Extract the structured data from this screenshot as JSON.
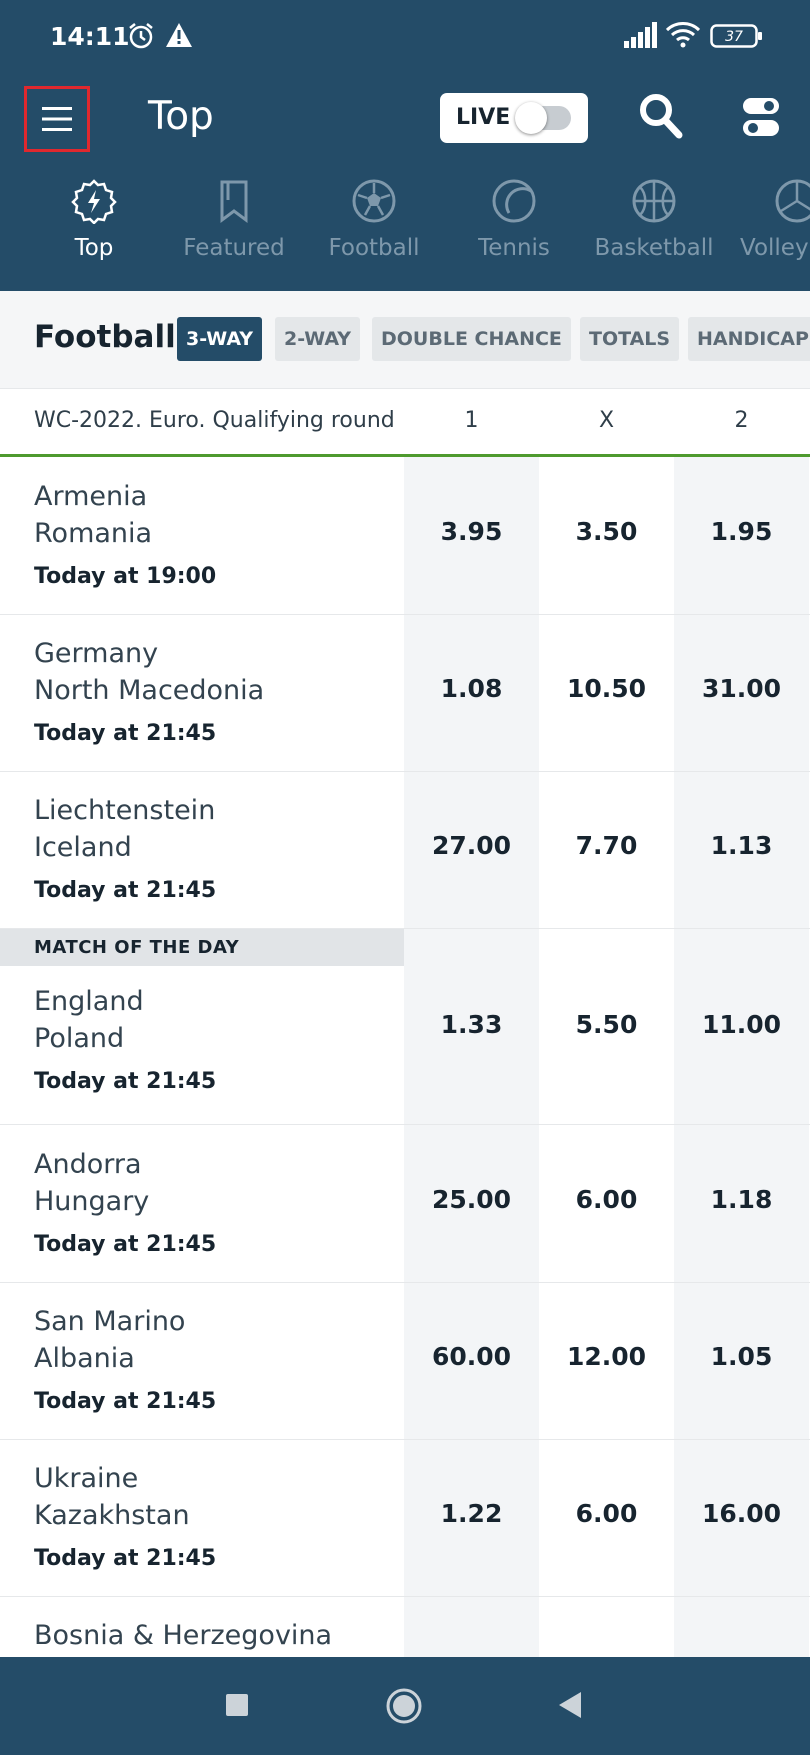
{
  "status_bar": {
    "time": "14:11",
    "battery": "37",
    "icons": [
      "alarm-icon",
      "warning-icon",
      "signal-icon",
      "wifi-icon",
      "battery-icon"
    ]
  },
  "header": {
    "title": "Top",
    "live_label": "LIVE",
    "live_on": false,
    "icons": [
      "menu-icon",
      "search-icon",
      "toggle-settings-icon"
    ]
  },
  "tabs": [
    {
      "label": "Top",
      "icon": "lightning-gear-icon",
      "active": true
    },
    {
      "label": "Featured",
      "icon": "bookmark-icon",
      "active": false
    },
    {
      "label": "Football",
      "icon": "football-icon",
      "active": false
    },
    {
      "label": "Tennis",
      "icon": "tennis-ball-icon",
      "active": false
    },
    {
      "label": "Basketball",
      "icon": "basketball-icon",
      "active": false
    },
    {
      "label": "Volley",
      "icon": "volleyball-icon",
      "active": false
    }
  ],
  "filters": {
    "sport": "Football",
    "chips": [
      {
        "label": "3-WAY",
        "active": true
      },
      {
        "label": "2-WAY",
        "active": false
      },
      {
        "label": "DOUBLE CHANCE",
        "active": false
      },
      {
        "label": "TOTALS",
        "active": false
      },
      {
        "label": "HANDICAP",
        "active": false
      }
    ]
  },
  "columns": {
    "league": "WC-2022. Euro. Qualifying round",
    "c1": "1",
    "cx": "X",
    "c2": "2"
  },
  "match_of_the_day_label": "MATCH OF THE DAY",
  "matches": [
    {
      "team1": "Armenia",
      "team2": "Romania",
      "time": "Today at 19:00",
      "odds": [
        "3.95",
        "3.50",
        "1.95"
      ]
    },
    {
      "team1": "Germany",
      "team2": "North Macedonia",
      "time": "Today at 21:45",
      "odds": [
        "1.08",
        "10.50",
        "31.00"
      ]
    },
    {
      "team1": "Liechtenstein",
      "team2": "Iceland",
      "time": "Today at 21:45",
      "odds": [
        "27.00",
        "7.70",
        "1.13"
      ]
    },
    {
      "team1": "England",
      "team2": "Poland",
      "time": "Today at 21:45",
      "odds": [
        "1.33",
        "5.50",
        "11.00"
      ]
    },
    {
      "team1": "Andorra",
      "team2": "Hungary",
      "time": "Today at 21:45",
      "odds": [
        "25.00",
        "6.00",
        "1.18"
      ]
    },
    {
      "team1": "San Marino",
      "team2": "Albania",
      "time": "Today at 21:45",
      "odds": [
        "60.00",
        "12.00",
        "1.05"
      ]
    },
    {
      "team1": "Ukraine",
      "team2": "Kazakhstan",
      "time": "Today at 21:45",
      "odds": [
        "1.22",
        "6.00",
        "16.00"
      ]
    },
    {
      "team1": "Bosnia & Herzegovina",
      "team2": "",
      "time": "",
      "odds": [
        "",
        "",
        ""
      ]
    }
  ],
  "nav_bar": {
    "icons": [
      "recents-icon",
      "home-icon",
      "back-icon"
    ]
  }
}
